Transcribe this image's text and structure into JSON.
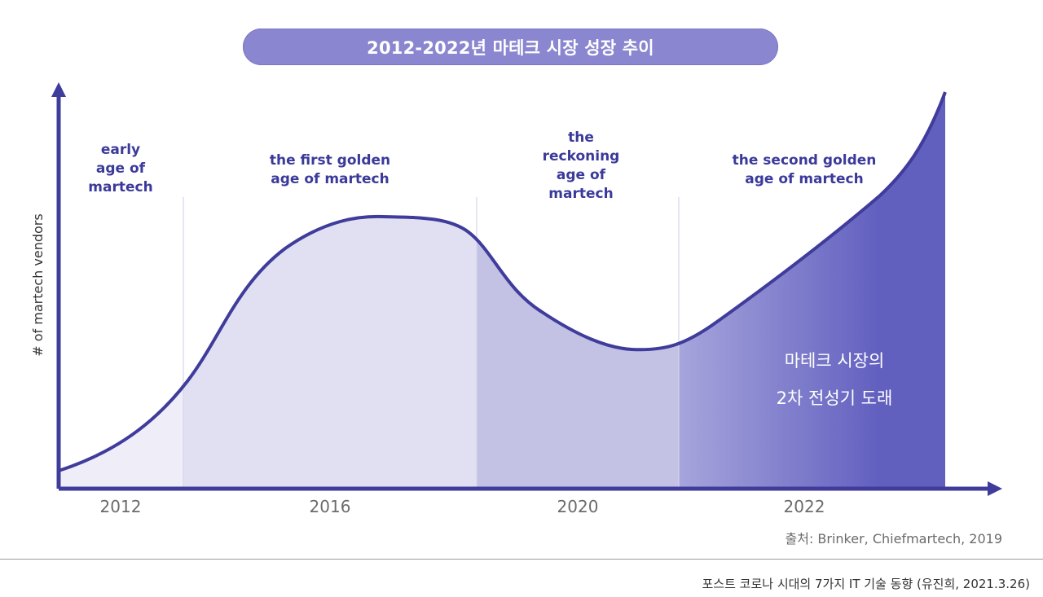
{
  "title": "2012-2022년 마테크 시장 성장 추이",
  "chart_data": {
    "type": "area",
    "ylabel": "# of martech vendors",
    "x_ticks": [
      "2012",
      "2016",
      "2020",
      "2022"
    ],
    "eras": [
      {
        "lines": [
          "early",
          "age of",
          "martech"
        ]
      },
      {
        "lines": [
          "the first golden",
          "age of martech"
        ]
      },
      {
        "lines": [
          "the",
          "reckoning",
          "age of",
          "martech"
        ]
      },
      {
        "lines": [
          "the second golden",
          "age of martech"
        ]
      }
    ],
    "annotation_lines": [
      "마테크 시장의",
      "2차 전성기 도래"
    ],
    "colors": {
      "line": "#3f3c9b",
      "era1": "#efeef8",
      "era2": "#e1e0f2",
      "era3": "#c3c1e4",
      "era4_start": "#a7a5dc",
      "era4_end": "#6260bf",
      "title_bg": "#8a86d0"
    }
  },
  "source": "출처: Brinker, Chiefmartech, 2019",
  "footer": "포스트 코로나 시대의 7가지 IT 기술 동향 (유진희, 2021.3.26)"
}
